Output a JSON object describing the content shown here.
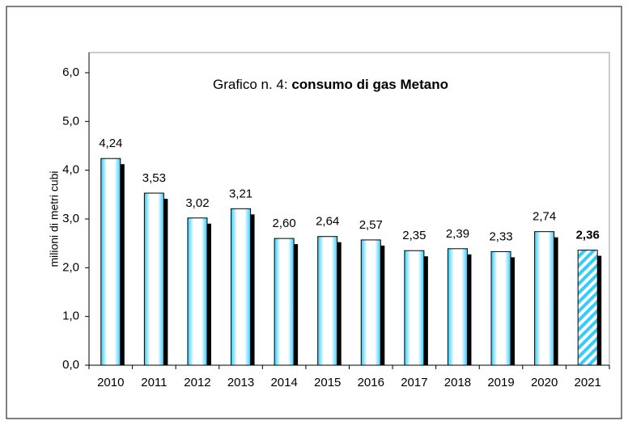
{
  "chart_data": {
    "type": "bar",
    "title_parts": [
      "Grafico n. 4:",
      "consumo di gas Metano"
    ],
    "ylabel": "milioni di metri cubi",
    "categories": [
      "2010",
      "2011",
      "2012",
      "2013",
      "2014",
      "2015",
      "2016",
      "2017",
      "2018",
      "2019",
      "2020",
      "2021"
    ],
    "values": [
      4.24,
      3.53,
      3.02,
      3.21,
      2.6,
      2.64,
      2.57,
      2.35,
      2.39,
      2.33,
      2.74,
      2.36
    ],
    "value_labels": [
      "4,24",
      "3,53",
      "3,02",
      "3,21",
      "2,60",
      "2,64",
      "2,57",
      "2,35",
      "2,39",
      "2,33",
      "2,74",
      "2,36"
    ],
    "color": "#33ccff",
    "highlight_index": 11,
    "ylim": [
      0,
      6
    ],
    "yticks": [
      {
        "value": 0,
        "label": "0,0"
      },
      {
        "value": 1,
        "label": "1,0"
      },
      {
        "value": 2,
        "label": "2,0"
      },
      {
        "value": 3,
        "label": "3,0"
      },
      {
        "value": 4,
        "label": "4,0"
      },
      {
        "value": 5,
        "label": "5,0"
      },
      {
        "value": 6,
        "label": "6,0"
      }
    ]
  }
}
